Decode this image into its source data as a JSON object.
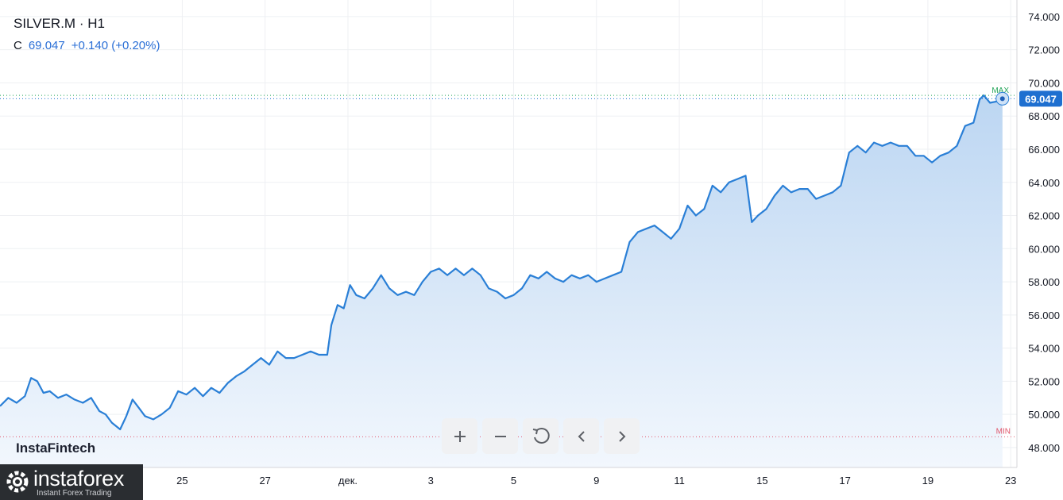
{
  "header": {
    "symbol": "SILVER.M · H1",
    "close_label": "C",
    "close_value": "69.047",
    "change": "+0.140 (+0.20%)"
  },
  "watermark": "InstaFintech",
  "logo": {
    "name": "instaforex",
    "tagline": "Instant Forex Trading"
  },
  "toolbar": [
    "zoom-in",
    "zoom-out",
    "reset",
    "scroll-left",
    "scroll-right"
  ],
  "colors": {
    "line": "#2a7fd6",
    "fill_top": "#bcd6f2",
    "max": "#26a65b",
    "min": "#e0566b",
    "price_tag": "#1e6fd0"
  },
  "chart_data": {
    "type": "area",
    "symbol": "SILVER.M",
    "timeframe": "H1",
    "ylim": [
      46.8,
      75.0
    ],
    "y_ticks": [
      "48.000",
      "50.000",
      "52.000",
      "54.000",
      "56.000",
      "58.000",
      "60.000",
      "62.000",
      "64.000",
      "66.000",
      "68.000",
      "70.000",
      "72.000",
      "74.000"
    ],
    "x_tick_labels": [
      "25",
      "27",
      "дек.",
      "3",
      "5",
      "9",
      "11",
      "15",
      "17",
      "19",
      "23"
    ],
    "x_range": [
      0,
      24.55
    ],
    "x_tick_positions": [
      4.4,
      6.4,
      8.4,
      10.4,
      12.4,
      14.4,
      16.4,
      18.4,
      20.4,
      22.4,
      24.4
    ],
    "last_price": "69.047",
    "max_label": "MAX",
    "min_label": "MIN",
    "max_value": 69.25,
    "min_value": 48.65,
    "series": [
      {
        "values": [
          [
            0.0,
            50.5
          ],
          [
            0.2,
            51.0
          ],
          [
            0.4,
            50.7
          ],
          [
            0.6,
            51.1
          ],
          [
            0.75,
            52.2
          ],
          [
            0.9,
            52.0
          ],
          [
            1.05,
            51.3
          ],
          [
            1.2,
            51.4
          ],
          [
            1.4,
            51.0
          ],
          [
            1.6,
            51.2
          ],
          [
            1.8,
            50.9
          ],
          [
            2.0,
            50.7
          ],
          [
            2.2,
            51.0
          ],
          [
            2.4,
            50.2
          ],
          [
            2.55,
            50.0
          ],
          [
            2.7,
            49.5
          ],
          [
            2.9,
            49.1
          ],
          [
            3.05,
            49.9
          ],
          [
            3.2,
            50.9
          ],
          [
            3.35,
            50.4
          ],
          [
            3.5,
            49.9
          ],
          [
            3.7,
            49.7
          ],
          [
            3.9,
            50.0
          ],
          [
            4.1,
            50.4
          ],
          [
            4.3,
            51.4
          ],
          [
            4.5,
            51.2
          ],
          [
            4.7,
            51.6
          ],
          [
            4.9,
            51.1
          ],
          [
            5.1,
            51.6
          ],
          [
            5.3,
            51.3
          ],
          [
            5.5,
            51.9
          ],
          [
            5.7,
            52.3
          ],
          [
            5.9,
            52.6
          ],
          [
            6.1,
            53.0
          ],
          [
            6.3,
            53.4
          ],
          [
            6.5,
            53.0
          ],
          [
            6.7,
            53.8
          ],
          [
            6.9,
            53.4
          ],
          [
            7.1,
            53.4
          ],
          [
            7.3,
            53.6
          ],
          [
            7.5,
            53.8
          ],
          [
            7.7,
            53.6
          ],
          [
            7.9,
            53.6
          ],
          [
            8.0,
            55.4
          ],
          [
            8.15,
            56.6
          ],
          [
            8.3,
            56.4
          ],
          [
            8.45,
            57.8
          ],
          [
            8.6,
            57.2
          ],
          [
            8.8,
            57.0
          ],
          [
            9.0,
            57.6
          ],
          [
            9.2,
            58.4
          ],
          [
            9.4,
            57.6
          ],
          [
            9.6,
            57.2
          ],
          [
            9.8,
            57.4
          ],
          [
            10.0,
            57.2
          ],
          [
            10.2,
            58.0
          ],
          [
            10.4,
            58.6
          ],
          [
            10.6,
            58.8
          ],
          [
            10.8,
            58.4
          ],
          [
            11.0,
            58.8
          ],
          [
            11.2,
            58.4
          ],
          [
            11.4,
            58.8
          ],
          [
            11.6,
            58.4
          ],
          [
            11.8,
            57.6
          ],
          [
            12.0,
            57.4
          ],
          [
            12.2,
            57.0
          ],
          [
            12.4,
            57.2
          ],
          [
            12.6,
            57.6
          ],
          [
            12.8,
            58.4
          ],
          [
            13.0,
            58.2
          ],
          [
            13.2,
            58.6
          ],
          [
            13.4,
            58.2
          ],
          [
            13.6,
            58.0
          ],
          [
            13.8,
            58.4
          ],
          [
            14.0,
            58.2
          ],
          [
            14.2,
            58.4
          ],
          [
            14.4,
            58.0
          ],
          [
            14.6,
            58.2
          ],
          [
            14.8,
            58.4
          ],
          [
            15.0,
            58.6
          ],
          [
            15.2,
            60.4
          ],
          [
            15.4,
            61.0
          ],
          [
            15.6,
            61.2
          ],
          [
            15.8,
            61.4
          ],
          [
            16.0,
            61.0
          ],
          [
            16.2,
            60.6
          ],
          [
            16.4,
            61.2
          ],
          [
            16.6,
            62.6
          ],
          [
            16.8,
            62.0
          ],
          [
            17.0,
            62.4
          ],
          [
            17.2,
            63.8
          ],
          [
            17.4,
            63.4
          ],
          [
            17.6,
            64.0
          ],
          [
            17.8,
            64.2
          ],
          [
            18.0,
            64.4
          ],
          [
            18.15,
            61.6
          ],
          [
            18.3,
            62.0
          ],
          [
            18.5,
            62.4
          ],
          [
            18.7,
            63.2
          ],
          [
            18.9,
            63.8
          ],
          [
            19.1,
            63.4
          ],
          [
            19.3,
            63.6
          ],
          [
            19.5,
            63.6
          ],
          [
            19.7,
            63.0
          ],
          [
            19.9,
            63.2
          ],
          [
            20.1,
            63.4
          ],
          [
            20.3,
            63.8
          ],
          [
            20.5,
            65.8
          ],
          [
            20.7,
            66.2
          ],
          [
            20.9,
            65.8
          ],
          [
            21.1,
            66.4
          ],
          [
            21.3,
            66.2
          ],
          [
            21.5,
            66.4
          ],
          [
            21.7,
            66.2
          ],
          [
            21.9,
            66.2
          ],
          [
            22.1,
            65.6
          ],
          [
            22.3,
            65.6
          ],
          [
            22.5,
            65.2
          ],
          [
            22.7,
            65.6
          ],
          [
            22.9,
            65.8
          ],
          [
            23.1,
            66.2
          ],
          [
            23.3,
            67.4
          ],
          [
            23.5,
            67.6
          ],
          [
            23.65,
            69.0
          ],
          [
            23.75,
            69.25
          ],
          [
            23.9,
            68.8
          ],
          [
            24.1,
            68.9
          ],
          [
            24.2,
            69.047
          ]
        ]
      }
    ]
  }
}
